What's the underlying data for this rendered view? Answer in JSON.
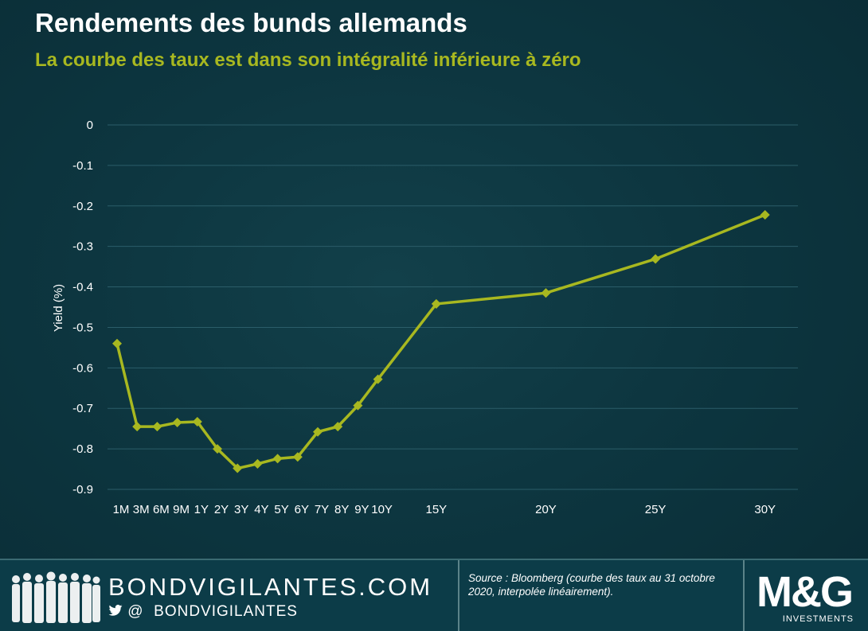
{
  "header": {
    "title": "Rendements des bunds allemands",
    "subtitle": "La courbe des taux est dans son intégralité inférieure à zéro"
  },
  "chart_data": {
    "type": "line",
    "title": "Rendements des bunds allemands",
    "subtitle": "La courbe des taux est dans son intégralité inférieure à zéro",
    "xlabel": "",
    "ylabel": "Yield (%)",
    "ylim": [
      -0.9,
      0
    ],
    "yticks": [
      "0",
      "-0.1",
      "-0.2",
      "-0.3",
      "-0.4",
      "-0.5",
      "-0.6",
      "-0.7",
      "-0.8",
      "-0.9"
    ],
    "grid": true,
    "x_years": [
      0.0833,
      0.25,
      0.5,
      0.75,
      1,
      2,
      3,
      4,
      5,
      6,
      7,
      8,
      9,
      10,
      15,
      20,
      25,
      30
    ],
    "categories": [
      "1M",
      "3M",
      "6M",
      "9M",
      "1Y",
      "2Y",
      "3Y",
      "4Y",
      "5Y",
      "6Y",
      "7Y",
      "8Y",
      "9Y",
      "10Y",
      "15Y",
      "20Y",
      "25Y",
      "30Y"
    ],
    "series": [
      {
        "name": "",
        "color": "#a8b820",
        "values": [
          -0.54,
          -0.745,
          -0.745,
          -0.735,
          -0.733,
          -0.8,
          -0.848,
          -0.837,
          -0.824,
          -0.82,
          -0.758,
          -0.745,
          -0.693,
          -0.628,
          -0.442,
          -0.415,
          -0.331,
          -0.222
        ]
      }
    ]
  },
  "footer": {
    "brand": "BONDVIGILANTES.COM",
    "social_icons": [
      "twitter-icon",
      "at-icon"
    ],
    "at_symbol": "@",
    "handle": "BONDVIGILANTES",
    "source": "Source : Bloomberg (courbe des taux au 31 octobre 2020, interpolée linéairement).",
    "logo_text": "M&G",
    "logo_sub": "INVESTMENTS"
  },
  "colors": {
    "accent": "#a8b820",
    "background": "#0d3640",
    "grid": "#2b5d69"
  }
}
